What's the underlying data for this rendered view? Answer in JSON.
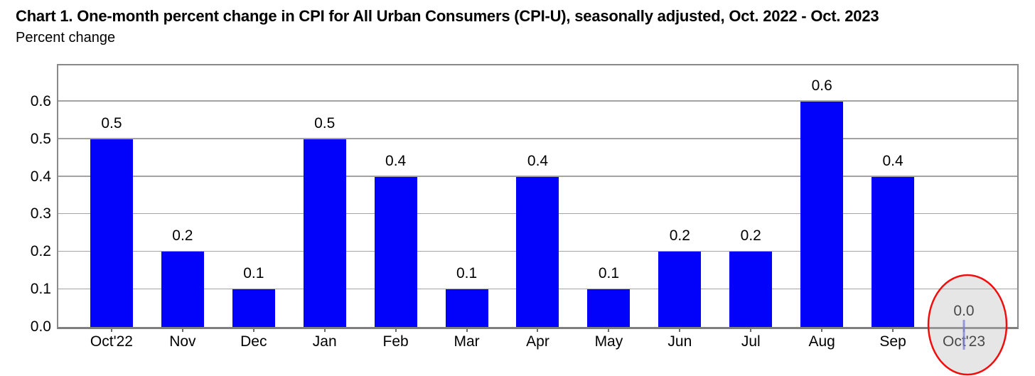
{
  "header": {
    "title": "Chart 1. One-month percent change in CPI for All Urban Consumers (CPI-U), seasonally adjusted, Oct. 2022 - Oct. 2023",
    "subtitle": "Percent change"
  },
  "chart_data": {
    "type": "bar",
    "title": "Chart 1. One-month percent change in CPI for All Urban Consumers (CPI-U), seasonally adjusted, Oct. 2022 - Oct. 2023",
    "ylabel": "Percent change",
    "xlabel": "",
    "categories": [
      "Oct'22",
      "Nov",
      "Dec",
      "Jan",
      "Feb",
      "Mar",
      "Apr",
      "May",
      "Jun",
      "Jul",
      "Aug",
      "Sep",
      "Oct'23"
    ],
    "values": [
      0.5,
      0.2,
      0.1,
      0.5,
      0.4,
      0.1,
      0.4,
      0.1,
      0.2,
      0.2,
      0.6,
      0.4,
      0.0
    ],
    "value_labels": [
      "0.5",
      "0.2",
      "0.1",
      "0.5",
      "0.4",
      "0.1",
      "0.4",
      "0.1",
      "0.2",
      "0.2",
      "0.6",
      "0.4",
      "0.0"
    ],
    "ylim": [
      0,
      0.7
    ],
    "yticks": [
      0.0,
      0.1,
      0.2,
      0.3,
      0.4,
      0.5,
      0.6
    ],
    "grid": true,
    "legend": "none",
    "colors": {
      "bar": "#0202fa",
      "gridline": "#a3a3a3",
      "frame": "#898989",
      "text": "#000000"
    },
    "annotation": {
      "type": "ellipse-highlight",
      "target_category": "Oct'23",
      "highlighted_value": "0.0",
      "stroke_color": "#f20d0d",
      "fill_color": "#bdbdbd",
      "fill_opacity": 0.38
    }
  }
}
